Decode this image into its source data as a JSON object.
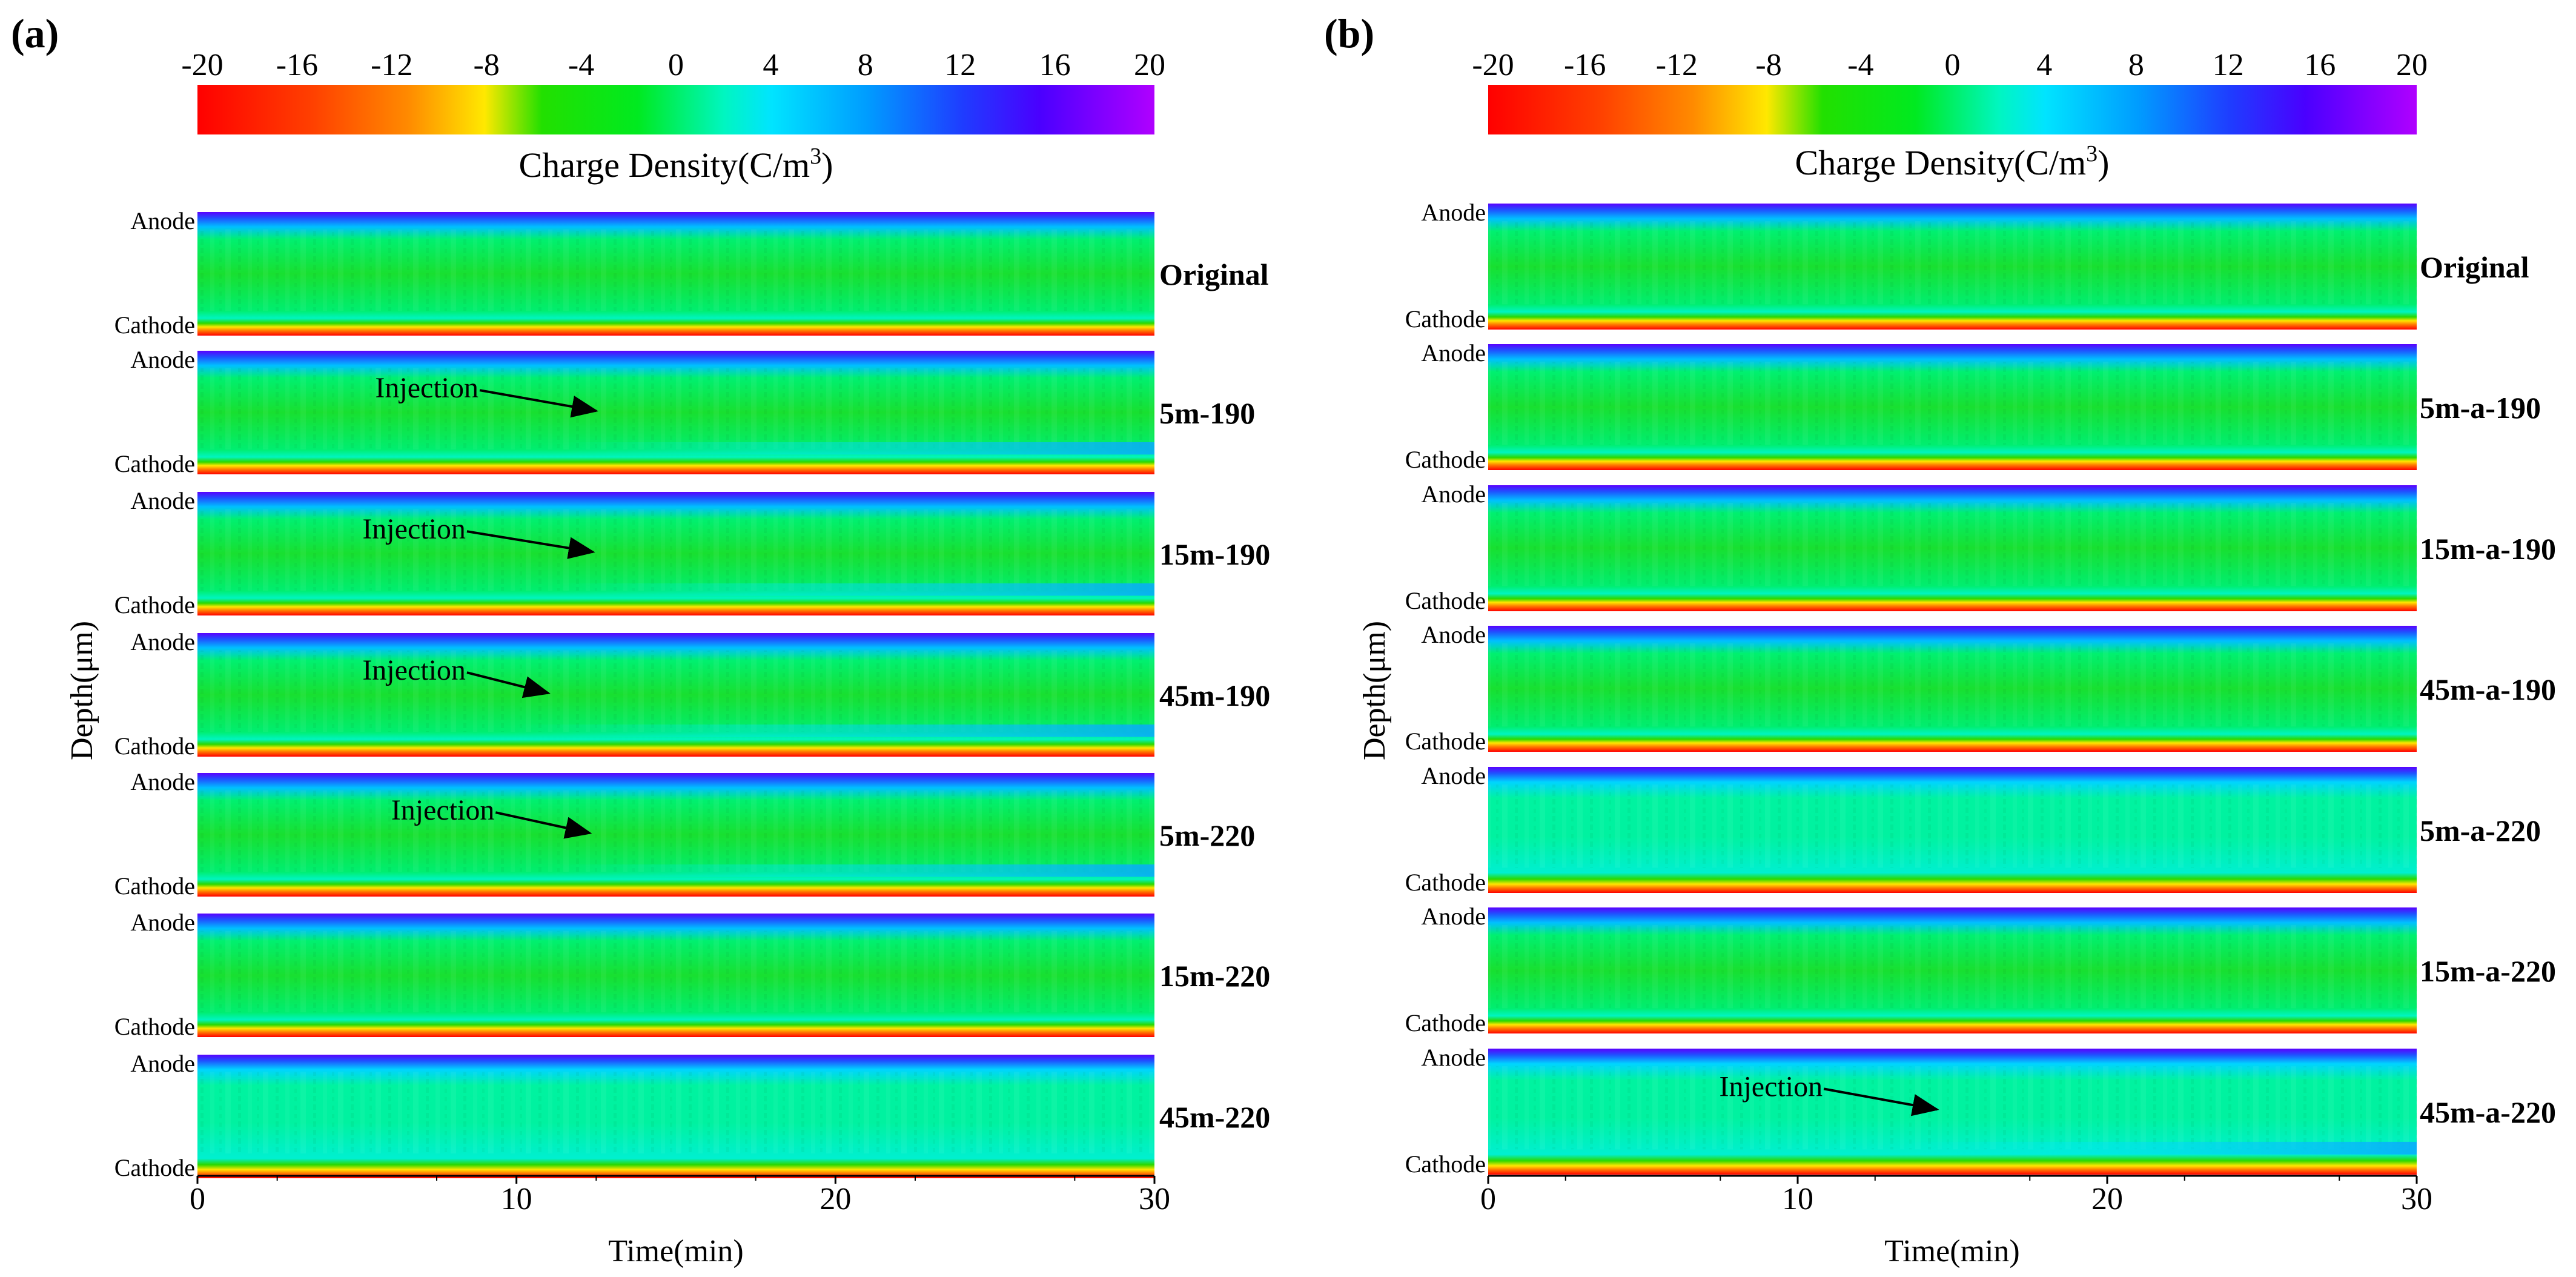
{
  "chart_data": [
    {
      "type": "heatmap",
      "panel_label": "(a)",
      "colorbar": {
        "ticks": [
          "-20",
          "-16",
          "-12",
          "-8",
          "-4",
          "0",
          "4",
          "8",
          "12",
          "16",
          "20"
        ],
        "range": [
          -20,
          20
        ],
        "label_main": "Charge Density(C/m",
        "label_sup": "3",
        "label_end": ")"
      },
      "ylabel": "Depth(μm)",
      "xlabel": "Time(min)",
      "xticks": [
        "0",
        "10",
        "20",
        "30"
      ],
      "xlim": [
        0,
        30
      ],
      "depth_labels": {
        "top": "Anode",
        "bottom": "Cathode"
      },
      "rows": [
        {
          "label": "Original",
          "injection": null
        },
        {
          "label": "5m-190",
          "injection": {
            "text": "Injection",
            "arrow_from_min": 9,
            "arrow_to_min": 12.5
          }
        },
        {
          "label": "15m-190",
          "injection": {
            "text": "Injection",
            "arrow_from_min": 8.6,
            "arrow_to_min": 12.4
          }
        },
        {
          "label": "45m-190",
          "injection": {
            "text": "Injection",
            "arrow_from_min": 8.6,
            "arrow_to_min": 11
          }
        },
        {
          "label": "5m-220",
          "injection": {
            "text": "Injection",
            "arrow_from_min": 9.5,
            "arrow_to_min": 12.3
          }
        },
        {
          "label": "15m-220",
          "injection": null
        },
        {
          "label": "45m-220",
          "injection": null
        }
      ]
    },
    {
      "type": "heatmap",
      "panel_label": "(b)",
      "colorbar": {
        "ticks": [
          "-20",
          "-16",
          "-12",
          "-8",
          "-4",
          "0",
          "4",
          "8",
          "12",
          "16",
          "20"
        ],
        "range": [
          -20,
          20
        ],
        "label_main": "Charge Density(C/m",
        "label_sup": "3",
        "label_end": ")"
      },
      "ylabel": "Depth(μm)",
      "xlabel": "Time(min)",
      "xticks": [
        "0",
        "10",
        "20",
        "30"
      ],
      "xlim": [
        0,
        30
      ],
      "depth_labels": {
        "top": "Anode",
        "bottom": "Cathode"
      },
      "rows": [
        {
          "label": "Original",
          "injection": null
        },
        {
          "label": "5m-a-190",
          "injection": null
        },
        {
          "label": "15m-a-190",
          "injection": null
        },
        {
          "label": "45m-a-190",
          "injection": null
        },
        {
          "label": "5m-a-220",
          "injection": null
        },
        {
          "label": "15m-a-220",
          "injection": null
        },
        {
          "label": "45m-a-220",
          "injection": {
            "text": "Injection",
            "arrow_from_min": 11,
            "arrow_to_min": 14.5
          }
        }
      ]
    }
  ]
}
